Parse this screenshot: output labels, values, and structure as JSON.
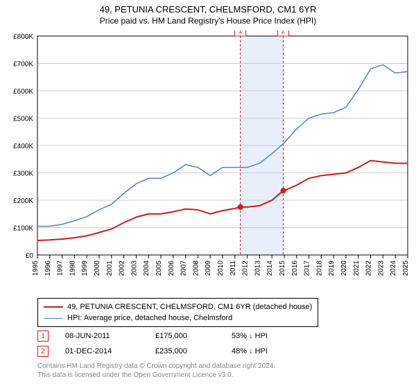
{
  "title": "49, PETUNIA CRESCENT, CHELMSFORD, CM1 6YR",
  "subtitle": "Price paid vs. HM Land Registry's House Price Index (HPI)",
  "chart": {
    "type": "line",
    "background_color": "#ffffff",
    "plot_border_color": "#000000",
    "grid_color": "#cccccc",
    "shaded_band_color": "#e8effa",
    "shaded_band_xstart": 2011.44,
    "shaded_band_xend": 2014.92,
    "title_fontsize": 13,
    "axis_label_fontsize": 11,
    "tick_fontsize": 10,
    "x": {
      "min": 1995,
      "max": 2025,
      "ticks": [
        1995,
        1996,
        1997,
        1998,
        1999,
        2000,
        2001,
        2002,
        2003,
        2004,
        2005,
        2006,
        2007,
        2008,
        2009,
        2010,
        2011,
        2012,
        2013,
        2014,
        2015,
        2016,
        2017,
        2018,
        2019,
        2020,
        2021,
        2022,
        2023,
        2024,
        2025
      ]
    },
    "y": {
      "min": 0,
      "max": 800000,
      "ticks": [
        0,
        100000,
        200000,
        300000,
        400000,
        500000,
        600000,
        700000,
        800000
      ],
      "tick_labels": [
        "£0",
        "£100K",
        "£200K",
        "£300K",
        "£400K",
        "£500K",
        "£600K",
        "£700K",
        "£800K"
      ]
    },
    "series": [
      {
        "name": "property",
        "label": "49, PETUNIA CRESCENT, CHELMSFORD, CM1 6YR (detached house)",
        "color": "#d11919",
        "line_width": 2,
        "data": [
          [
            1995,
            53000
          ],
          [
            1996,
            55000
          ],
          [
            1997,
            58000
          ],
          [
            1998,
            63000
          ],
          [
            1999,
            70000
          ],
          [
            2000,
            82000
          ],
          [
            2001,
            95000
          ],
          [
            2002,
            118000
          ],
          [
            2003,
            138000
          ],
          [
            2004,
            150000
          ],
          [
            2005,
            150000
          ],
          [
            2006,
            158000
          ],
          [
            2007,
            168000
          ],
          [
            2008,
            165000
          ],
          [
            2009,
            150000
          ],
          [
            2010,
            162000
          ],
          [
            2011,
            170000
          ],
          [
            2011.44,
            175000
          ],
          [
            2012,
            175000
          ],
          [
            2013,
            180000
          ],
          [
            2014,
            200000
          ],
          [
            2014.92,
            235000
          ],
          [
            2015,
            235000
          ],
          [
            2016,
            255000
          ],
          [
            2017,
            280000
          ],
          [
            2018,
            290000
          ],
          [
            2019,
            295000
          ],
          [
            2020,
            300000
          ],
          [
            2021,
            320000
          ],
          [
            2022,
            345000
          ],
          [
            2023,
            340000
          ],
          [
            2024,
            335000
          ],
          [
            2025,
            335000
          ]
        ]
      },
      {
        "name": "hpi",
        "label": "HPI: Average price, detached house, Chelmsford",
        "color": "#5b7fc7",
        "line_width": 1.5,
        "data": [
          [
            1995,
            105000
          ],
          [
            1996,
            105000
          ],
          [
            1997,
            112000
          ],
          [
            1998,
            125000
          ],
          [
            1999,
            140000
          ],
          [
            2000,
            165000
          ],
          [
            2001,
            185000
          ],
          [
            2002,
            225000
          ],
          [
            2003,
            260000
          ],
          [
            2004,
            280000
          ],
          [
            2005,
            280000
          ],
          [
            2006,
            300000
          ],
          [
            2007,
            330000
          ],
          [
            2008,
            320000
          ],
          [
            2009,
            290000
          ],
          [
            2010,
            320000
          ],
          [
            2011,
            320000
          ],
          [
            2012,
            320000
          ],
          [
            2013,
            335000
          ],
          [
            2014,
            370000
          ],
          [
            2015,
            410000
          ],
          [
            2016,
            460000
          ],
          [
            2017,
            500000
          ],
          [
            2018,
            515000
          ],
          [
            2019,
            520000
          ],
          [
            2020,
            540000
          ],
          [
            2021,
            605000
          ],
          [
            2022,
            680000
          ],
          [
            2023,
            695000
          ],
          [
            2024,
            665000
          ],
          [
            2025,
            670000
          ]
        ]
      }
    ],
    "sale_markers": [
      {
        "n": "1",
        "x": 2011.44,
        "y": 175000,
        "border_color": "#d11919",
        "dash": "3,3"
      },
      {
        "n": "2",
        "x": 2014.92,
        "y": 235000,
        "border_color": "#d11919",
        "dash": "3,3"
      }
    ]
  },
  "legend": {
    "rows": [
      {
        "color": "#d11919",
        "width": 2,
        "label_bind": "chart.series.0.label"
      },
      {
        "color": "#5b7fc7",
        "width": 1.5,
        "label_bind": "chart.series.1.label"
      }
    ]
  },
  "sales": [
    {
      "n": "1",
      "border_color": "#d11919",
      "date": "08-JUN-2011",
      "price": "£175,000",
      "delta": "53% ↓ HPI"
    },
    {
      "n": "2",
      "border_color": "#d11919",
      "date": "01-DEC-2014",
      "price": "£235,000",
      "delta": "48% ↓ HPI"
    }
  ],
  "footer": {
    "line1": "Contains HM Land Registry data © Crown copyright and database right 2024.",
    "line2": "This data is licensed under the Open Government Licence v3.0."
  }
}
